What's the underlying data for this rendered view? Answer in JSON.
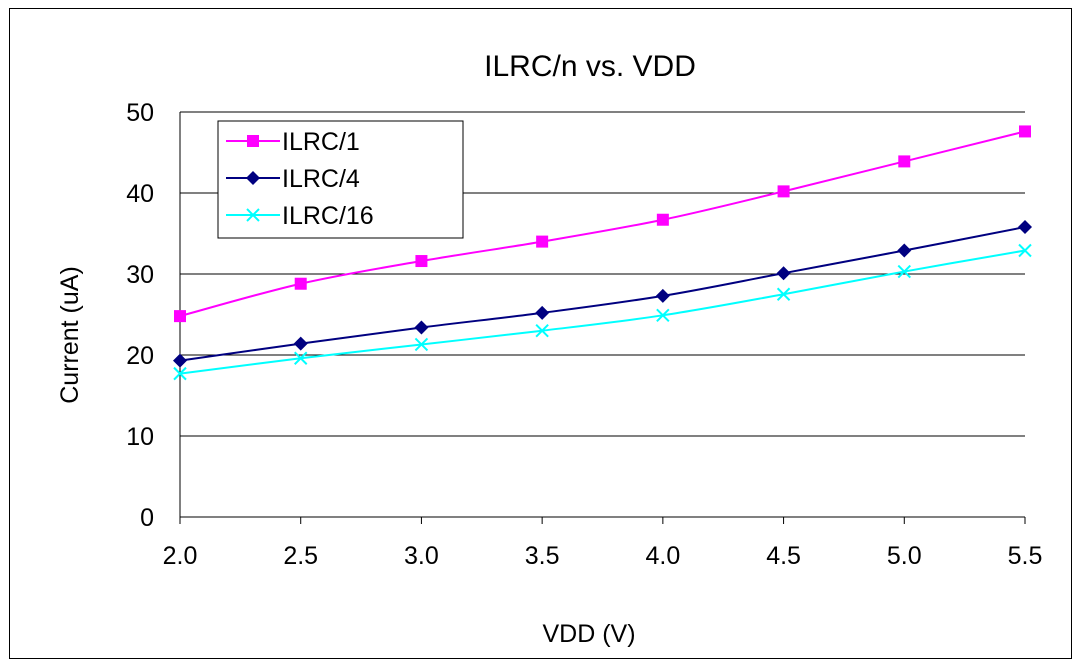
{
  "chart_data": {
    "type": "line",
    "title": "ILRC/n vs. VDD",
    "xlabel": "VDD (V)",
    "ylabel": "Current (uA)",
    "x": [
      2.0,
      2.5,
      3.0,
      3.5,
      4.0,
      4.5,
      5.0,
      5.5
    ],
    "x_tick_labels": [
      "2.0",
      "2.5",
      "3.0",
      "3.5",
      "4.0",
      "4.5",
      "5.0",
      "5.5"
    ],
    "y_tick_labels": [
      "0",
      "10",
      "20",
      "30",
      "40",
      "50"
    ],
    "xlim": [
      2.0,
      5.5
    ],
    "ylim": [
      0,
      50
    ],
    "grid": "horizontal major lines",
    "legend_position": "top-left",
    "series": [
      {
        "name": "ILRC/1",
        "color": "#ff00ff",
        "marker": "square",
        "values": [
          24.8,
          28.8,
          31.6,
          34.0,
          36.7,
          40.2,
          43.9,
          47.6
        ]
      },
      {
        "name": "ILRC/4",
        "color": "#000080",
        "marker": "diamond",
        "values": [
          19.3,
          21.4,
          23.4,
          25.2,
          27.3,
          30.1,
          32.9,
          35.8
        ]
      },
      {
        "name": "ILRC/16",
        "color": "#00ffff",
        "marker": "x",
        "values": [
          17.7,
          19.6,
          21.3,
          23.0,
          24.9,
          27.5,
          30.3,
          32.9
        ]
      }
    ]
  }
}
